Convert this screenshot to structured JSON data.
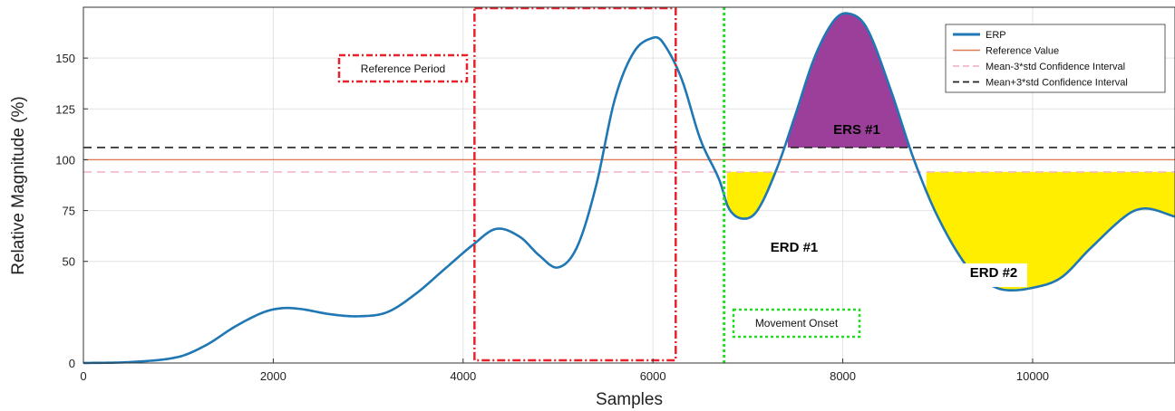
{
  "chart_data": {
    "type": "line",
    "xlabel": "Samples",
    "ylabel": "Relative Magnitude (%)",
    "xlim": [
      0,
      11500
    ],
    "ylim": [
      0,
      175
    ],
    "xticks": [
      0,
      2000,
      4000,
      6000,
      8000,
      10000
    ],
    "xtick_labels": [
      "0",
      "2000",
      "4000",
      "6000",
      "8000",
      "10000"
    ],
    "yticks": [
      0,
      50,
      75,
      100,
      125,
      150
    ],
    "ytick_labels": [
      "0",
      "50",
      "75",
      "100",
      "125",
      "150"
    ],
    "grid": true,
    "legend_position": "top-right",
    "series": [
      {
        "name": "ERP",
        "color": "#1f77b4",
        "style": "solid",
        "x": [
          0,
          500,
          1000,
          1300,
          1600,
          1900,
          2100,
          2300,
          2600,
          2900,
          3200,
          3500,
          3800,
          4100,
          4350,
          4600,
          4800,
          5000,
          5200,
          5400,
          5600,
          5800,
          6000,
          6100,
          6300,
          6500,
          6700,
          6800,
          6950,
          7100,
          7300,
          7500,
          7700,
          7900,
          8050,
          8250,
          8500,
          8750,
          9000,
          9300,
          9500,
          9700,
          10000,
          10300,
          10600,
          11000,
          11200,
          11500
        ],
        "y": [
          0,
          0.5,
          3,
          9,
          18,
          25,
          27,
          26.5,
          24,
          23,
          25,
          34,
          46,
          58,
          66,
          62,
          53,
          47,
          57,
          87,
          130,
          153,
          160,
          158,
          140,
          110,
          90,
          76,
          71,
          75,
          95,
          122,
          150,
          168,
          172,
          165,
          135,
          100,
          72,
          48,
          40,
          36,
          37,
          42,
          56,
          73,
          76,
          72
        ]
      },
      {
        "name": "Reference Value",
        "color": "#e07b54",
        "style": "solid",
        "constant": 100
      },
      {
        "name": "Mean-3*std Confidence Interval",
        "color": "#f5b6c8",
        "style": "dashed",
        "constant": 94
      },
      {
        "name": "Mean+3*std Confidence Interval",
        "color": "#222222",
        "style": "dashed",
        "constant": 106
      }
    ],
    "regions": [
      {
        "label": "ERS #1",
        "color": "#9b3f9b",
        "x_range": [
          7420,
          8720
        ],
        "baseline": 106,
        "type": "above"
      },
      {
        "label": "ERD #1",
        "color": "#ffee00",
        "x_range": [
          6780,
          7270
        ],
        "baseline": 94,
        "type": "below"
      },
      {
        "label": "ERD #2",
        "color": "#ffee00",
        "x_range": [
          8880,
          11500
        ],
        "baseline": 94,
        "type": "below"
      }
    ],
    "annotations": {
      "reference_period": {
        "label": "Reference Period",
        "x_range": [
          4120,
          6240
        ],
        "color": "#e8212a"
      },
      "movement_onset": {
        "label": "Movement Onset",
        "x": 6750,
        "color": "#22dd22"
      }
    }
  }
}
